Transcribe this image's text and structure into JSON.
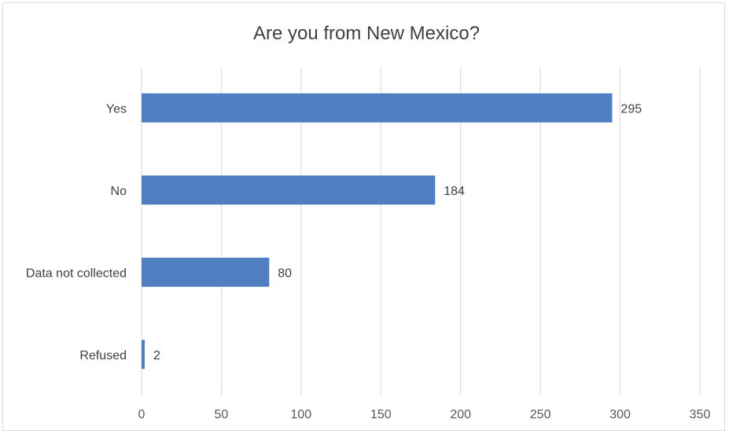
{
  "chart_data": {
    "type": "bar",
    "orientation": "horizontal",
    "title": "Are you from New Mexico?",
    "categories": [
      "Yes",
      "No",
      "Data not collected",
      "Refused"
    ],
    "values": [
      295,
      184,
      80,
      2
    ],
    "data_labels": [
      "295",
      "184",
      "80",
      "2"
    ],
    "xlim": [
      0,
      350
    ],
    "x_ticks": [
      0,
      50,
      100,
      150,
      200,
      250,
      300,
      350
    ],
    "x_tick_labels": [
      "0",
      "50",
      "100",
      "150",
      "200",
      "250",
      "300",
      "350"
    ],
    "grid": "vertical",
    "legend": "none",
    "bar_color": "#4f7fc0",
    "gridline_color": "#d9d9d9",
    "xlabel": "",
    "ylabel": ""
  }
}
